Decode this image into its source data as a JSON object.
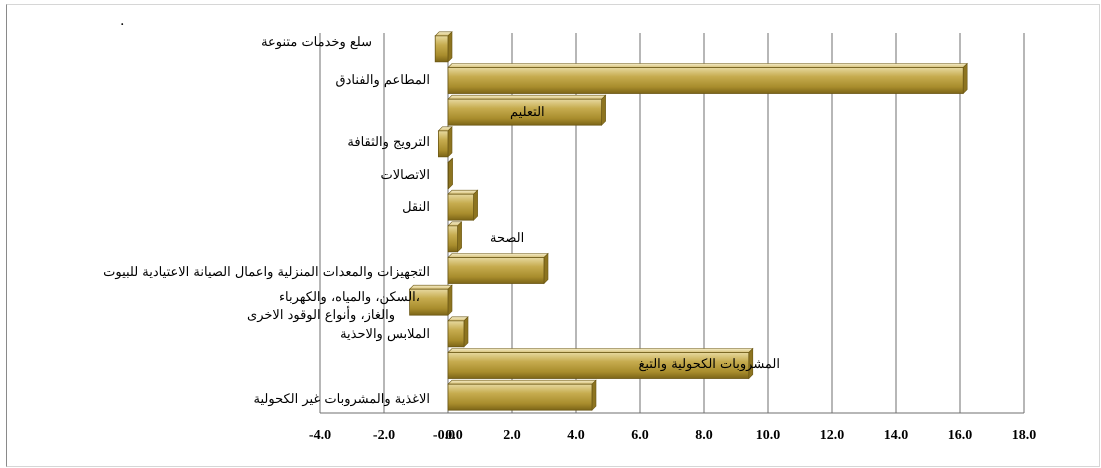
{
  "chart_data": {
    "type": "bar",
    "orientation": "horizontal",
    "title": "",
    "xlabel": "",
    "ylabel": "",
    "xlim": [
      -4.0,
      18.0
    ],
    "x_ticks": [
      "-4.0",
      "-2.0",
      "-0.0",
      "0.0",
      "2.0",
      "4.0",
      "6.0",
      "8.0",
      "10.0",
      "12.0",
      "14.0",
      "16.0",
      "18.0"
    ],
    "tick_values": [
      -4,
      -2,
      -0.0001,
      0.0001,
      2,
      4,
      6,
      8,
      10,
      12,
      14,
      16,
      18
    ],
    "grid": "vertical",
    "bar_color": "#b39a3a",
    "categories": [
      "سلع وخدمات متنوعة",
      "المطاعم والفنادق",
      "التعليم",
      "الترويج والثقافة",
      "الاتصالات",
      "النقل",
      "الصحة",
      "التجهيزات والمعدات المنزلية واعمال الصيانة الاعتيادية للبيوت",
      "السكن، والمياه، والكهرباء، والغاز، وأنواع الوقود الاخرى",
      "الملابس والاحذية",
      "المشروبات الكحولية والتبغ",
      "الاغذية والمشروبات غير الكحولية"
    ],
    "values": [
      -0.4,
      16.1,
      4.8,
      -0.3,
      0.0,
      0.8,
      0.3,
      3.0,
      -1.2,
      0.5,
      9.4,
      4.5
    ]
  },
  "decor": {
    "dot": "."
  }
}
